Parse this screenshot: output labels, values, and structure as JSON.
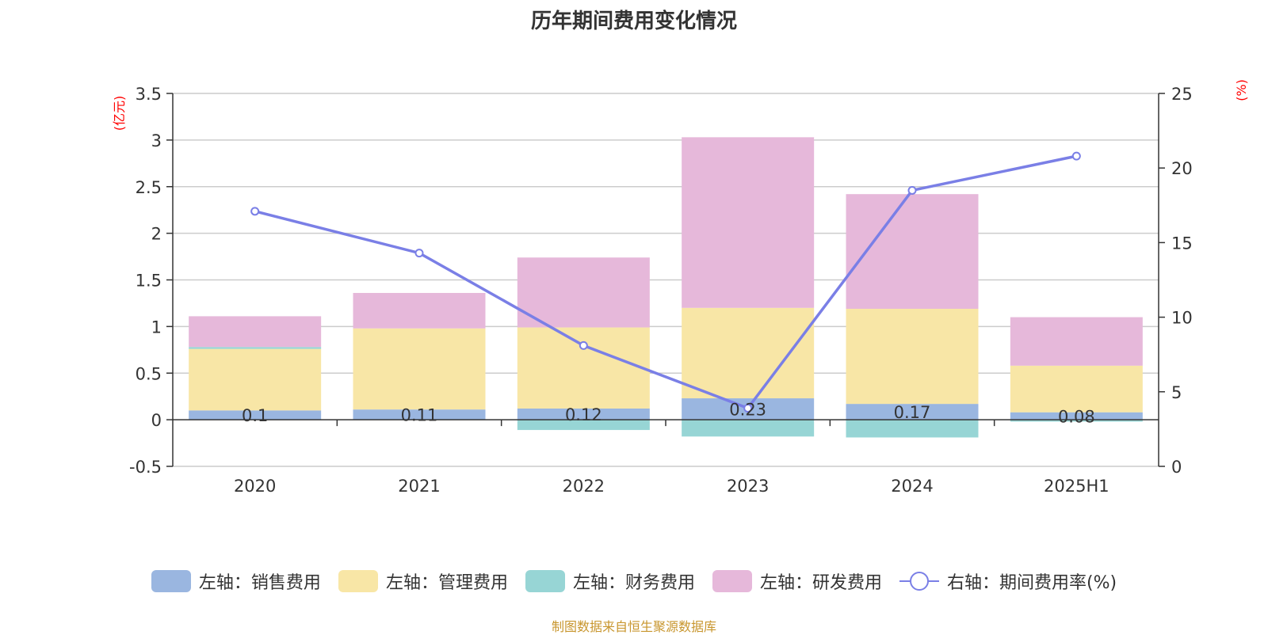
{
  "chart_data": {
    "type": "bar",
    "title": "历年期间费用变化情况",
    "categories": [
      "2020",
      "2021",
      "2022",
      "2023",
      "2024",
      "2025H1"
    ],
    "left_axis": {
      "unit": "(亿元)",
      "ylim": [
        -0.5,
        3.5
      ],
      "ticks": [
        "3.5",
        "3",
        "2.5",
        "2",
        "1.5",
        "1",
        "0.5",
        "0",
        "-0.5"
      ]
    },
    "right_axis": {
      "unit": "(%)",
      "ylim": [
        0,
        25
      ],
      "ticks": [
        "25",
        "20",
        "15",
        "10",
        "5",
        "0"
      ]
    },
    "series": [
      {
        "name": "左轴：销售费用",
        "type": "bar",
        "axis": "left",
        "color": "#9ab6e0",
        "values": [
          0.1,
          0.11,
          0.12,
          0.23,
          0.17,
          0.08
        ],
        "labels": [
          "0.1",
          "0.11",
          "0.12",
          "0.23",
          "0.17",
          "0.08"
        ]
      },
      {
        "name": "左轴：管理费用",
        "type": "bar",
        "axis": "left",
        "color": "#f8e6a6",
        "values": [
          0.66,
          0.87,
          0.87,
          0.97,
          1.02,
          0.5
        ]
      },
      {
        "name": "左轴：财务费用",
        "type": "bar",
        "axis": "left",
        "color": "#97d5d5",
        "values": [
          0.02,
          0.0,
          -0.11,
          -0.18,
          -0.19,
          -0.02
        ]
      },
      {
        "name": "左轴：研发费用",
        "type": "bar",
        "axis": "left",
        "color": "#e6b8da",
        "values": [
          0.33,
          0.38,
          0.75,
          1.83,
          1.23,
          0.52
        ]
      },
      {
        "name": "右轴：期间费用率(%)",
        "type": "line",
        "axis": "right",
        "color": "#7a7fe6",
        "values": [
          17.1,
          14.3,
          8.1,
          3.9,
          18.5,
          20.8
        ]
      }
    ],
    "grid": true,
    "legend_position": "bottom"
  },
  "source_note": "制图数据来自恒生聚源数据库"
}
